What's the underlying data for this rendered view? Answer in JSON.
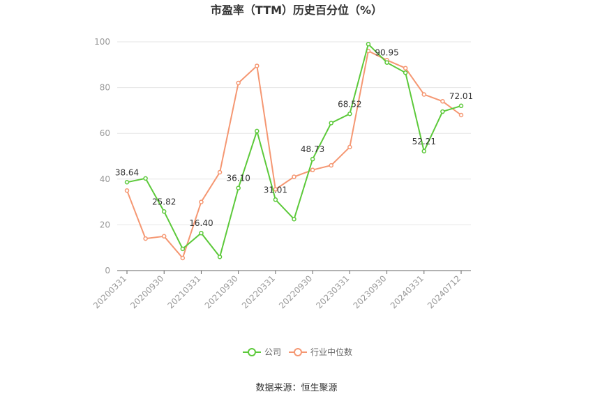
{
  "chart_data": {
    "type": "line",
    "title": "市盈率（TTM）历史百分位（%）",
    "source": "数据来源：恒生聚源",
    "ylim": [
      0,
      100
    ],
    "yticks": [
      0,
      20,
      40,
      60,
      80,
      100
    ],
    "grid": true,
    "legend_position": "bottom",
    "x_tick_labels": [
      "20200331",
      "20200930",
      "20210331",
      "20210930",
      "20220331",
      "20220930",
      "20230331",
      "20230930",
      "20240331",
      "20240712"
    ],
    "x_tick_index": [
      0,
      2,
      4,
      6,
      8,
      10,
      12,
      14,
      16,
      18
    ],
    "series": [
      {
        "name": "公司",
        "color": "#5cc93a",
        "values": [
          38.64,
          40.3,
          25.82,
          9.5,
          16.4,
          6.0,
          36.1,
          61.0,
          31.01,
          22.5,
          48.73,
          64.5,
          68.52,
          99.0,
          90.95,
          86.5,
          52.21,
          69.5,
          72.01
        ],
        "labels": {
          "0": "38.64",
          "2": "25.82",
          "4": "16.40",
          "6": "36.10",
          "8": "31.01",
          "10": "48.73",
          "12": "68.52",
          "14": "90.95",
          "16": "52.21",
          "18": "72.01"
        }
      },
      {
        "name": "行业中位数",
        "color": "#f59772",
        "values": [
          35.0,
          14.0,
          15.0,
          5.5,
          30.0,
          43.0,
          82.0,
          89.5,
          35.5,
          41.0,
          44.0,
          46.0,
          54.0,
          96.0,
          92.0,
          88.5,
          77.0,
          74.0,
          68.0
        ]
      }
    ]
  }
}
